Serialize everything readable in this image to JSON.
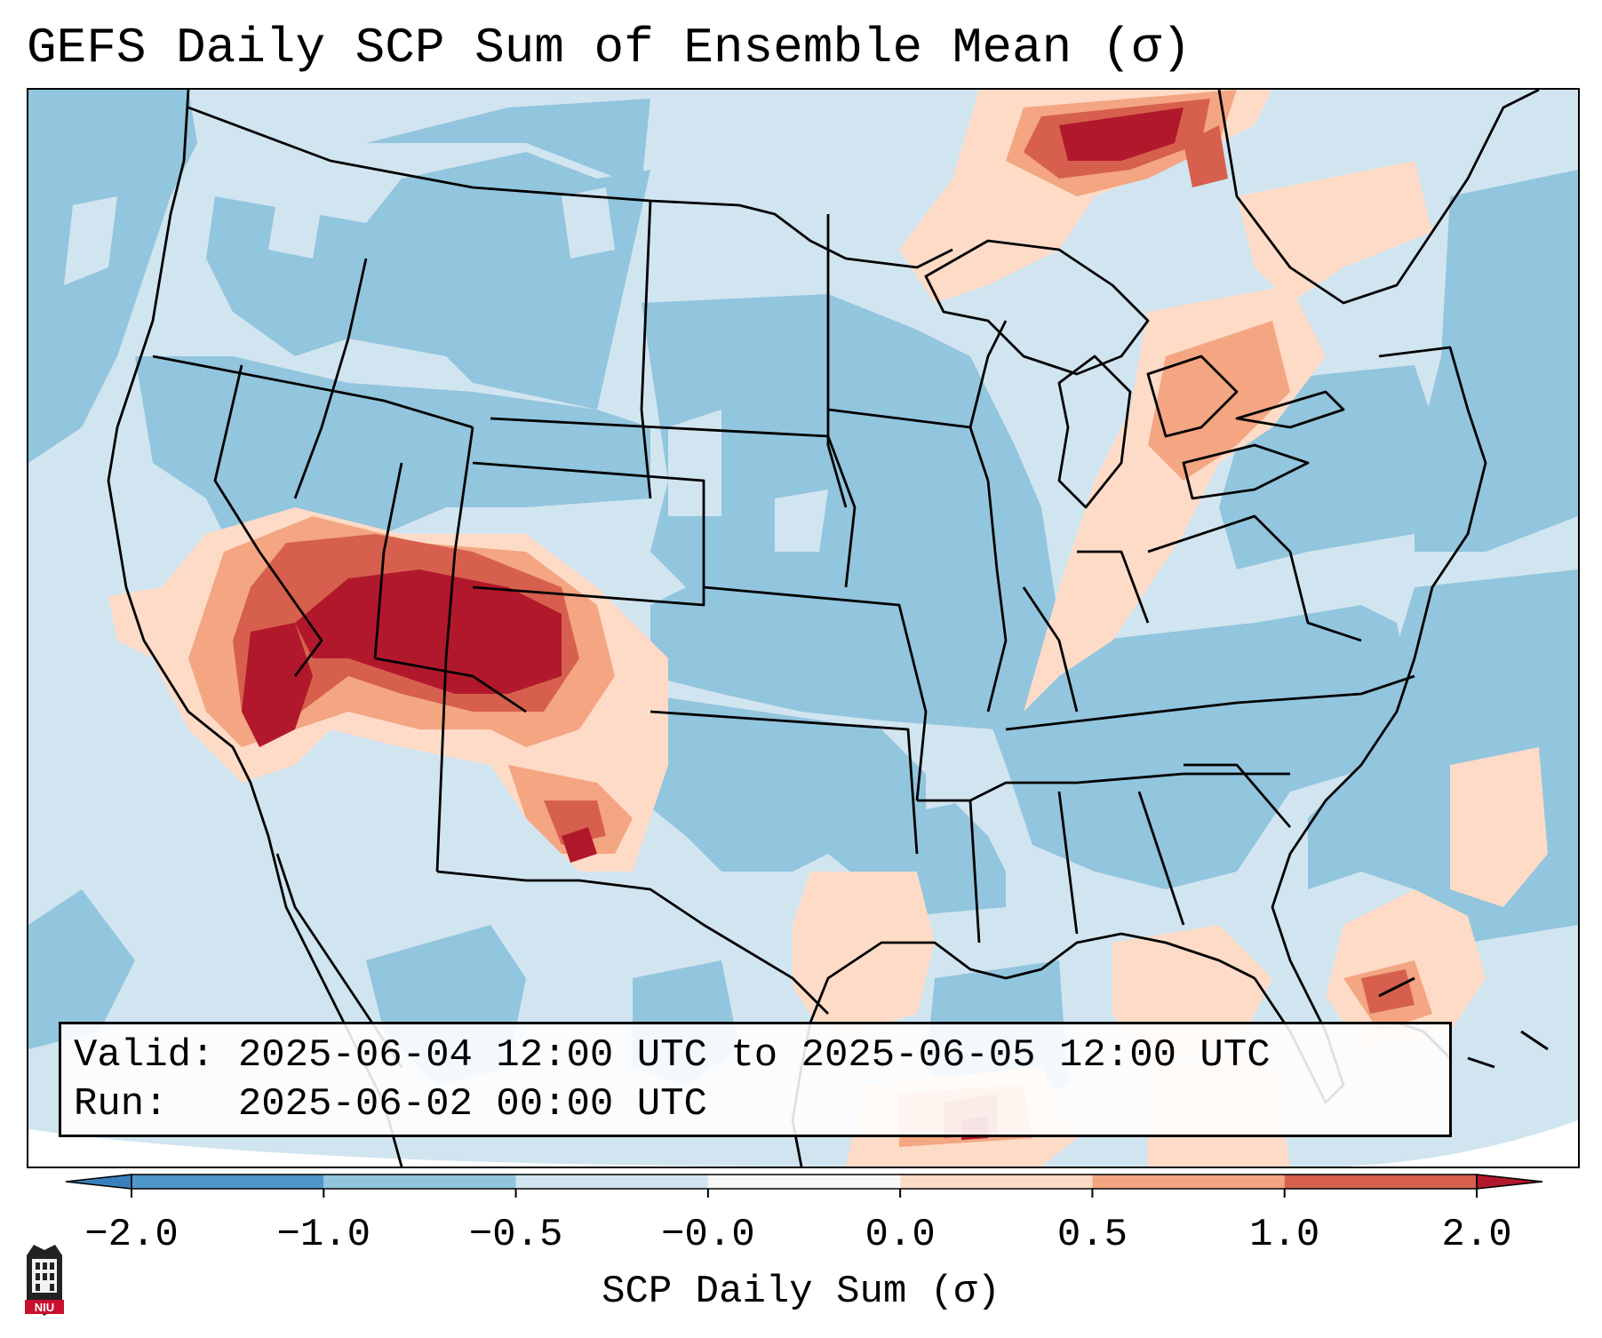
{
  "title": "GEFS Daily SCP Sum of Ensemble Mean (σ)",
  "info": {
    "valid_label": "Valid:",
    "valid_value": "2025-06-04 12:00 UTC to 2025-06-05 12:00 UTC",
    "run_label": "Run:",
    "run_value": "2025-06-02 00:00 UTC"
  },
  "colorbar": {
    "label": "SCP Daily Sum (σ)",
    "ticks": [
      "−2.0",
      "−1.0",
      "−0.5",
      "−0.0",
      "0.0",
      "0.5",
      "1.0",
      "2.0"
    ],
    "bins": [
      {
        "range": "< -2.0",
        "color": "#3a7fbd"
      },
      {
        "range": "-2.0 to -1.0",
        "color": "#4f96c9"
      },
      {
        "range": "-1.0 to -0.5",
        "color": "#92c5de"
      },
      {
        "range": "-0.5 to -0.0",
        "color": "#d1e5f0"
      },
      {
        "range": "-0.0 to 0.0",
        "color": "#f7f7f7"
      },
      {
        "range": "0.0 to 0.5",
        "color": "#fddbc7"
      },
      {
        "range": "0.5 to 1.0",
        "color": "#f4a582"
      },
      {
        "range": "1.0 to 2.0",
        "color": "#d6604d"
      },
      {
        "range": "> 2.0",
        "color": "#b2182b"
      }
    ]
  },
  "colors": {
    "ocean": "#d1e5f0",
    "strong_neg": "#92c5de",
    "light_pos": "#fddbc7",
    "mid_pos": "#f4a582",
    "pos": "#d6604d",
    "strong_pos": "#b2182b"
  },
  "logo": {
    "text": "NIU",
    "icon": "niu-logo-icon"
  }
}
